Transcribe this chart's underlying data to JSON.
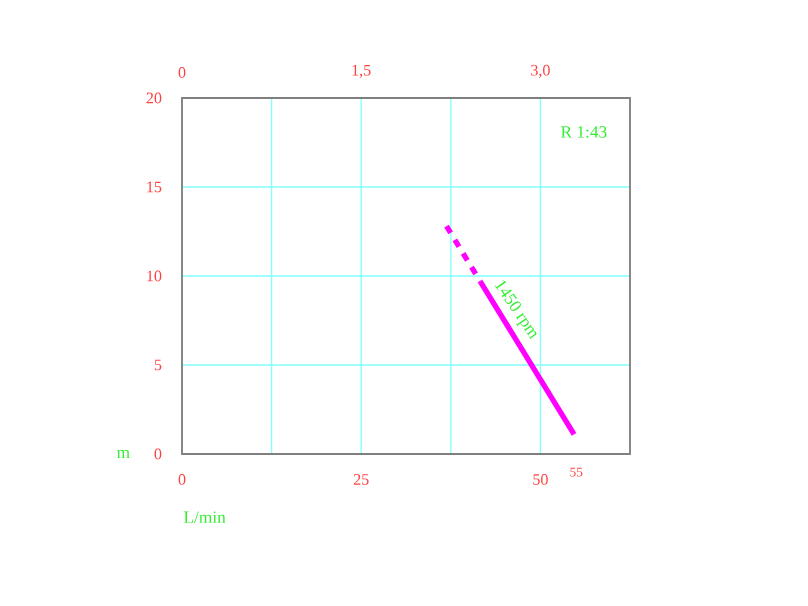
{
  "chart_data": {
    "type": "line",
    "xlabel": "L/min",
    "ylabel": "m",
    "xlim": [
      0,
      62.5
    ],
    "ylim": [
      0,
      20
    ],
    "xticks": [
      0,
      {
        "value": 12.5,
        "label": null
      },
      25,
      {
        "value": 37.5,
        "label": null
      },
      50
    ],
    "yticks": [
      0,
      5,
      10,
      15,
      20
    ],
    "x2lim": [
      0,
      3.75
    ],
    "x2ticks": [
      0,
      {
        "value": 0.75,
        "label": null
      },
      {
        "value": 1.5,
        "label": "1,5"
      },
      {
        "value": 2.25,
        "label": null
      },
      {
        "value": 3.0,
        "label": "3,0"
      }
    ],
    "grid": true,
    "series": [
      {
        "color": "#ff00ff",
        "line_style": "dashed",
        "x": [
          36.9,
          41.6
        ],
        "values": [
          12.8,
          9.7
        ]
      },
      {
        "color": "#ff00ff",
        "line_style": "solid",
        "x": [
          41.6,
          54.7
        ],
        "values": [
          9.7,
          1.1
        ]
      }
    ],
    "annotations": [
      "1450 rpm",
      "55",
      "R  1:43"
    ]
  }
}
